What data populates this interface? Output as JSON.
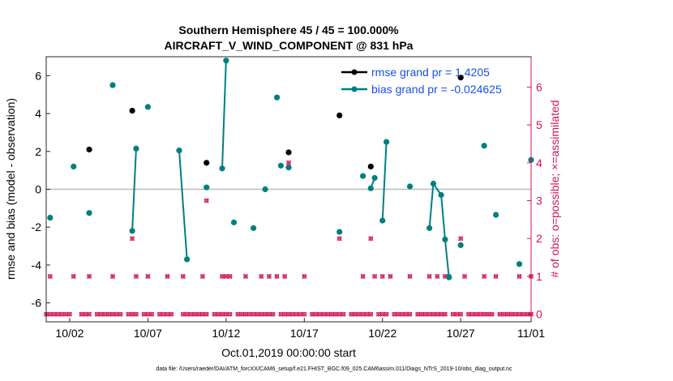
{
  "chart_data": {
    "type": "scatter",
    "title_line1": "Southern Hemisphere 45 / 45 = 100.000%",
    "title_line2": "AIRCRAFT_V_WIND_COMPONENT @ 831 hPa",
    "xlabel": "Oct.01,2019 00:00:00 start",
    "ylabel": "rmse and bias (model - observation)",
    "ylabel_right": "# of obs: o=possible; ×=assimilated",
    "xlim": [
      0.5,
      31.5
    ],
    "ylim": [
      -7,
      7
    ],
    "ylim_right": [
      -0.2,
      6.8
    ],
    "x_ticks": [
      {
        "x": 2,
        "label": "10/02"
      },
      {
        "x": 7,
        "label": "10/07"
      },
      {
        "x": 12,
        "label": "10/12"
      },
      {
        "x": 17,
        "label": "10/17"
      },
      {
        "x": 22,
        "label": "10/22"
      },
      {
        "x": 27,
        "label": "10/27"
      },
      {
        "x": 32,
        "label": "11/01"
      }
    ],
    "y_ticks": [
      {
        "v": -6,
        "label": "-6"
      },
      {
        "v": -4,
        "label": "-4"
      },
      {
        "v": -2,
        "label": "-2"
      },
      {
        "v": 0,
        "label": "0"
      },
      {
        "v": 2,
        "label": "2"
      },
      {
        "v": 4,
        "label": "4"
      },
      {
        "v": 6,
        "label": "6"
      }
    ],
    "y_ticks_right": [
      {
        "v": 0,
        "label": "0"
      },
      {
        "v": 1,
        "label": "1"
      },
      {
        "v": 2,
        "label": "2"
      },
      {
        "v": 3,
        "label": "3"
      },
      {
        "v": 4,
        "label": "4"
      },
      {
        "v": 5,
        "label": "5"
      },
      {
        "v": 6,
        "label": "6"
      }
    ],
    "legend": [
      {
        "name": "rmse grand pr = 1.4205",
        "color": "#000000"
      },
      {
        "name": "bias grand pr = -0.024625",
        "color": "#007f7f"
      }
    ],
    "rmse_points": [
      [
        3.25,
        2.1
      ],
      [
        6.0,
        4.15
      ],
      [
        10.75,
        1.4
      ],
      [
        16.0,
        1.95
      ],
      [
        19.25,
        3.9
      ],
      [
        21.25,
        1.2
      ],
      [
        27.0,
        5.9
      ]
    ],
    "bias_segments": [
      [
        [
          0.75,
          -1.5
        ]
      ],
      [
        [
          2.25,
          1.2
        ]
      ],
      [
        [
          3.25,
          -1.25
        ]
      ],
      [
        [
          4.75,
          5.5
        ]
      ],
      [
        [
          6.0,
          -2.2
        ],
        [
          6.25,
          2.15
        ]
      ],
      [
        [
          7.0,
          4.35
        ]
      ],
      [
        [
          9.0,
          2.05
        ],
        [
          9.5,
          -3.7
        ]
      ],
      [
        [
          10.75,
          0.1
        ]
      ],
      [
        [
          11.75,
          1.1
        ],
        [
          12.0,
          6.8
        ]
      ],
      [
        [
          12.5,
          -1.75
        ]
      ],
      [
        [
          13.75,
          -2.05
        ]
      ],
      [
        [
          14.5,
          0.0
        ]
      ],
      [
        [
          15.25,
          4.85
        ]
      ],
      [
        [
          15.5,
          1.25
        ]
      ],
      [
        [
          16.0,
          1.15
        ]
      ],
      [
        [
          19.25,
          -2.25
        ]
      ],
      [
        [
          20.75,
          0.7
        ]
      ],
      [
        [
          21.25,
          0.05
        ],
        [
          21.5,
          0.6
        ]
      ],
      [
        [
          22.0,
          -1.65
        ],
        [
          22.25,
          2.5
        ]
      ],
      [
        [
          23.75,
          0.15
        ]
      ],
      [
        [
          25.0,
          -2.05
        ],
        [
          25.25,
          0.3
        ],
        [
          25.75,
          -0.3
        ],
        [
          26.0,
          -2.65
        ],
        [
          26.25,
          -4.65
        ]
      ],
      [
        [
          27.0,
          -2.95
        ]
      ],
      [
        [
          28.5,
          2.3
        ]
      ],
      [
        [
          29.25,
          -1.35
        ]
      ],
      [
        [
          30.75,
          -3.95
        ]
      ],
      [
        [
          31.5,
          1.55
        ]
      ]
    ],
    "obs_count_points": [
      [
        6.0,
        2
      ],
      [
        9.75,
        0
      ],
      [
        10.75,
        3
      ],
      [
        16.0,
        4
      ],
      [
        19.25,
        2
      ],
      [
        21.25,
        2
      ],
      [
        27.0,
        2
      ],
      [
        0.75,
        1
      ],
      [
        2.25,
        1
      ],
      [
        3.25,
        1
      ],
      [
        4.75,
        1
      ],
      [
        6.25,
        1
      ],
      [
        7.0,
        1
      ],
      [
        8.25,
        1
      ],
      [
        9.25,
        1
      ],
      [
        10.5,
        1
      ],
      [
        11.75,
        1
      ],
      [
        12.0,
        1
      ],
      [
        12.25,
        1
      ],
      [
        13.25,
        1
      ],
      [
        14.25,
        1
      ],
      [
        14.75,
        1
      ],
      [
        15.25,
        1
      ],
      [
        15.75,
        1
      ],
      [
        17.0,
        1
      ],
      [
        20.75,
        1
      ],
      [
        21.5,
        1
      ],
      [
        22.0,
        1
      ],
      [
        22.5,
        1
      ],
      [
        23.75,
        1
      ],
      [
        25.0,
        1
      ],
      [
        25.5,
        1
      ],
      [
        26.0,
        1
      ],
      [
        26.25,
        1
      ],
      [
        27.25,
        1
      ],
      [
        28.5,
        1
      ],
      [
        29.25,
        1
      ],
      [
        30.75,
        1
      ],
      [
        31.5,
        1
      ],
      [
        0.5,
        0
      ],
      [
        0.75,
        0
      ],
      [
        1.0,
        0
      ],
      [
        1.25,
        0
      ],
      [
        1.5,
        0
      ],
      [
        1.75,
        0
      ],
      [
        2.0,
        0
      ],
      [
        2.75,
        0
      ],
      [
        3.0,
        0
      ],
      [
        3.25,
        0
      ],
      [
        3.75,
        0
      ],
      [
        4.0,
        0
      ],
      [
        4.25,
        0
      ],
      [
        4.5,
        0
      ],
      [
        4.75,
        0
      ],
      [
        5.0,
        0
      ],
      [
        5.25,
        0
      ],
      [
        5.75,
        0
      ],
      [
        6.0,
        0
      ],
      [
        6.25,
        0
      ],
      [
        6.75,
        0
      ],
      [
        7.0,
        0
      ],
      [
        7.25,
        0
      ],
      [
        7.75,
        0
      ],
      [
        8.0,
        0
      ],
      [
        8.25,
        0
      ],
      [
        8.5,
        0
      ],
      [
        9.25,
        0
      ],
      [
        9.5,
        0
      ],
      [
        10.0,
        0
      ],
      [
        10.25,
        0
      ],
      [
        10.5,
        0
      ],
      [
        10.75,
        0
      ],
      [
        11.25,
        0
      ],
      [
        11.5,
        0
      ],
      [
        11.75,
        0
      ],
      [
        12.0,
        0
      ],
      [
        12.25,
        0
      ],
      [
        12.75,
        0
      ],
      [
        13.0,
        0
      ],
      [
        13.25,
        0
      ],
      [
        13.5,
        0
      ],
      [
        13.75,
        0
      ],
      [
        14.0,
        0
      ],
      [
        14.25,
        0
      ],
      [
        14.5,
        0
      ],
      [
        14.75,
        0
      ],
      [
        15.0,
        0
      ],
      [
        15.5,
        0
      ],
      [
        15.75,
        0
      ],
      [
        16.0,
        0
      ],
      [
        16.25,
        0
      ],
      [
        16.5,
        0
      ],
      [
        16.75,
        0
      ],
      [
        17.0,
        0
      ],
      [
        17.5,
        0
      ],
      [
        17.75,
        0
      ],
      [
        18.0,
        0
      ],
      [
        18.25,
        0
      ],
      [
        18.5,
        0
      ],
      [
        18.75,
        0
      ],
      [
        19.0,
        0
      ],
      [
        19.25,
        0
      ],
      [
        19.5,
        0
      ],
      [
        20.0,
        0
      ],
      [
        20.25,
        0
      ],
      [
        20.5,
        0
      ],
      [
        20.75,
        0
      ],
      [
        21.0,
        0
      ],
      [
        21.25,
        0
      ],
      [
        21.75,
        0
      ],
      [
        22.0,
        0
      ],
      [
        22.25,
        0
      ],
      [
        22.75,
        0
      ],
      [
        23.0,
        0
      ],
      [
        23.25,
        0
      ],
      [
        23.5,
        0
      ],
      [
        23.75,
        0
      ],
      [
        24.25,
        0
      ],
      [
        24.5,
        0
      ],
      [
        24.75,
        0
      ],
      [
        25.0,
        0
      ],
      [
        25.25,
        0
      ],
      [
        25.5,
        0
      ],
      [
        25.75,
        0
      ],
      [
        26.0,
        0
      ],
      [
        26.5,
        0
      ],
      [
        26.75,
        0
      ],
      [
        27.0,
        0
      ],
      [
        27.5,
        0
      ],
      [
        27.75,
        0
      ],
      [
        28.0,
        0
      ],
      [
        28.25,
        0
      ],
      [
        28.5,
        0
      ],
      [
        28.75,
        0
      ],
      [
        29.0,
        0
      ],
      [
        29.5,
        0
      ],
      [
        29.75,
        0
      ],
      [
        30.0,
        0
      ],
      [
        30.25,
        0
      ],
      [
        30.5,
        0
      ],
      [
        30.75,
        0
      ],
      [
        31.0,
        0
      ],
      [
        31.25,
        0
      ],
      [
        31.5,
        0
      ]
    ],
    "zero_line": 0,
    "colors": {
      "rmse": "#000000",
      "bias": "#007f7f",
      "obs": "#d0155a",
      "zero": "#bbbbbb",
      "legend_text": "#1a4fe8"
    },
    "footnote": "data file: /Users/raeder/DAI/ATM_forcXX/CAM6_setup/f.e21.FHIST_BGC.f09_025.CAM6assim.011/Diags_NTrS_2019-10/obs_diag_output.nc"
  }
}
